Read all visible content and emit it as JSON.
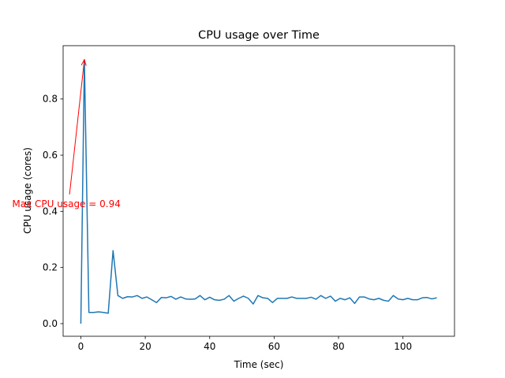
{
  "chart_data": {
    "type": "line",
    "title": "CPU usage over Time",
    "xlabel": "Time (sec)",
    "ylabel": "CPU usage (cores)",
    "xlim": [
      -5.5,
      116
    ],
    "ylim": [
      -0.045,
      0.99
    ],
    "xticks": [
      0,
      20,
      40,
      60,
      80,
      100
    ],
    "yticks": [
      0.0,
      0.2,
      0.4,
      0.6,
      0.8
    ],
    "xtick_labels": [
      "0",
      "20",
      "40",
      "60",
      "80",
      "100"
    ],
    "ytick_labels": [
      "0.0",
      "0.2",
      "0.4",
      "0.6",
      "0.8"
    ],
    "grid": false,
    "series_color": "#1f77b4",
    "annotation_color": "#ff0000",
    "annotation": {
      "text": "Max CPU usage = 0.94",
      "point": [
        1.1,
        0.94
      ],
      "text_at": [
        -4.0,
        0.46
      ]
    },
    "series": [
      {
        "x": [
          0,
          1.1,
          2.5,
          4,
          5.5,
          7,
          8.5,
          10,
          11.5,
          13,
          14.5,
          16,
          17.5,
          19,
          20.5,
          22,
          23.5,
          25,
          26.5,
          28,
          29.5,
          31,
          32.5,
          34,
          35.5,
          37,
          38.5,
          40,
          41.5,
          43,
          44.5,
          46,
          47.5,
          49,
          50.5,
          52,
          53.5,
          55,
          56.5,
          58,
          59.5,
          61,
          62.5,
          64,
          65.5,
          67,
          68.5,
          70,
          71.5,
          73,
          74.5,
          76,
          77.5,
          79,
          80.5,
          82,
          83.5,
          85,
          86.5,
          88,
          89.5,
          91,
          92.5,
          94,
          95.5,
          97,
          98.5,
          100,
          101.5,
          103,
          104.5,
          106,
          107.5,
          109,
          110.5
        ],
        "values": [
          0.0,
          0.94,
          0.04,
          0.04,
          0.042,
          0.04,
          0.037,
          0.26,
          0.1,
          0.09,
          0.096,
          0.095,
          0.1,
          0.09,
          0.095,
          0.085,
          0.075,
          0.093,
          0.092,
          0.097,
          0.087,
          0.095,
          0.088,
          0.087,
          0.088,
          0.1,
          0.085,
          0.094,
          0.085,
          0.083,
          0.087,
          0.1,
          0.08,
          0.09,
          0.098,
          0.09,
          0.07,
          0.1,
          0.092,
          0.09,
          0.075,
          0.09,
          0.09,
          0.09,
          0.095,
          0.09,
          0.09,
          0.09,
          0.094,
          0.087,
          0.1,
          0.09,
          0.098,
          0.08,
          0.09,
          0.085,
          0.092,
          0.072,
          0.095,
          0.095,
          0.088,
          0.085,
          0.09,
          0.083,
          0.08,
          0.1,
          0.088,
          0.085,
          0.09,
          0.085,
          0.085,
          0.092,
          0.093,
          0.088,
          0.092
        ]
      }
    ]
  }
}
